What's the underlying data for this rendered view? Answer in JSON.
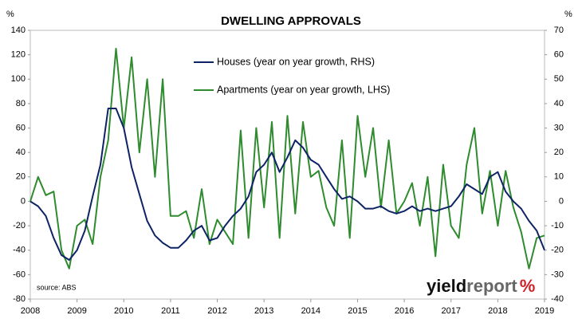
{
  "chart_data": {
    "type": "line",
    "title": "DWELLING APPROVALS",
    "y_label": "%",
    "y2_label": "%",
    "source": "source: ABS",
    "logo": [
      "yield",
      "report",
      "%"
    ],
    "x": [
      2008.0,
      2008.167,
      2008.333,
      2008.5,
      2008.667,
      2008.833,
      2009.0,
      2009.167,
      2009.333,
      2009.5,
      2009.667,
      2009.833,
      2010.0,
      2010.167,
      2010.333,
      2010.5,
      2010.667,
      2010.833,
      2011.0,
      2011.167,
      2011.333,
      2011.5,
      2011.667,
      2011.833,
      2012.0,
      2012.167,
      2012.333,
      2012.5,
      2012.667,
      2012.833,
      2013.0,
      2013.167,
      2013.333,
      2013.5,
      2013.667,
      2013.833,
      2014.0,
      2014.167,
      2014.333,
      2014.5,
      2014.667,
      2014.833,
      2015.0,
      2015.167,
      2015.333,
      2015.5,
      2015.667,
      2015.833,
      2016.0,
      2016.167,
      2016.333,
      2016.5,
      2016.667,
      2016.833,
      2017.0,
      2017.167,
      2017.333,
      2017.5,
      2017.667,
      2017.833,
      2018.0,
      2018.167,
      2018.333,
      2018.5,
      2018.667,
      2018.833,
      2019.0
    ],
    "xlim": [
      2008,
      2019
    ],
    "xticks": [
      2008,
      2009,
      2010,
      2011,
      2012,
      2013,
      2014,
      2015,
      2016,
      2017,
      2018,
      2019
    ],
    "ylim": [
      -80,
      140
    ],
    "yticks": [
      -80,
      -60,
      -40,
      -20,
      0,
      20,
      40,
      60,
      80,
      100,
      120,
      140
    ],
    "y2lim": [
      -40,
      70
    ],
    "y2ticks": [
      -40,
      -30,
      -20,
      -10,
      0,
      10,
      20,
      30,
      40,
      50,
      60,
      70
    ],
    "legend": "upper center",
    "series": [
      {
        "name": "Houses (year on year growth, RHS)",
        "color": "#0e2366",
        "axis": "y2",
        "values": [
          0,
          -2,
          -6,
          -15,
          -22,
          -24,
          -20,
          -12,
          2,
          15,
          38,
          38,
          30,
          14,
          3,
          -8,
          -14,
          -17,
          -19,
          -19,
          -16,
          -12,
          -10,
          -16,
          -15,
          -10,
          -6,
          -3,
          2,
          12,
          15,
          20,
          12,
          18,
          25,
          22,
          17,
          15,
          10,
          5,
          1,
          2,
          0,
          -3,
          -3,
          -2,
          -4,
          -5,
          -4,
          -2,
          -4,
          -3,
          -4,
          -3,
          -2,
          2,
          7,
          5,
          3,
          10,
          12,
          4,
          0,
          -3,
          -8,
          -12,
          -20
        ]
      },
      {
        "name": "Apartments (year on year growth, LHS)",
        "color": "#2e8b2e",
        "values": [
          0,
          20,
          5,
          8,
          -40,
          -55,
          -20,
          -15,
          -35,
          20,
          50,
          125,
          60,
          118,
          40,
          100,
          20,
          100,
          -12,
          -12,
          -8,
          -30,
          10,
          -35,
          -15,
          -25,
          -35,
          58,
          -30,
          60,
          -5,
          65,
          -30,
          70,
          -10,
          65,
          20,
          25,
          -5,
          -20,
          50,
          -30,
          70,
          20,
          60,
          -5,
          50,
          -10,
          0,
          15,
          -20,
          20,
          -45,
          30,
          -20,
          -30,
          30,
          60,
          -10,
          25,
          -20,
          25,
          -5,
          -25,
          -55,
          -30,
          -28
        ]
      }
    ]
  }
}
